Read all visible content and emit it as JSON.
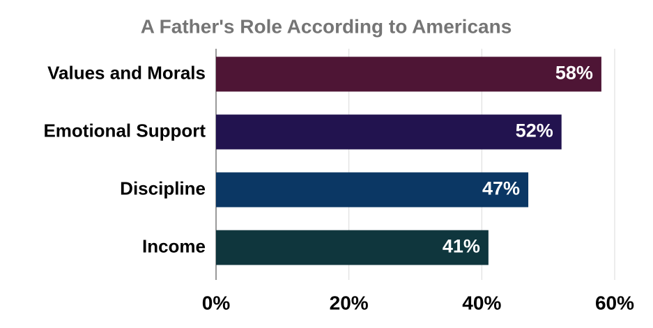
{
  "chart_data": {
    "type": "bar",
    "orientation": "horizontal",
    "title": "A Father's Role According to Americans",
    "categories": [
      "Values and Morals",
      "Emotional Support",
      "Discipline",
      "Income"
    ],
    "values": [
      58,
      52,
      47,
      41
    ],
    "value_labels": [
      "58%",
      "52%",
      "47%",
      "41%"
    ],
    "colors": [
      "#4e1535",
      "#22134f",
      "#0b3764",
      "#0f363d"
    ],
    "xlim": [
      0,
      60
    ],
    "xticks": [
      {
        "value": 0,
        "label": "0%"
      },
      {
        "value": 20,
        "label": "20%"
      },
      {
        "value": 40,
        "label": "40%"
      },
      {
        "value": 60,
        "label": "60%"
      }
    ],
    "grid": true
  }
}
